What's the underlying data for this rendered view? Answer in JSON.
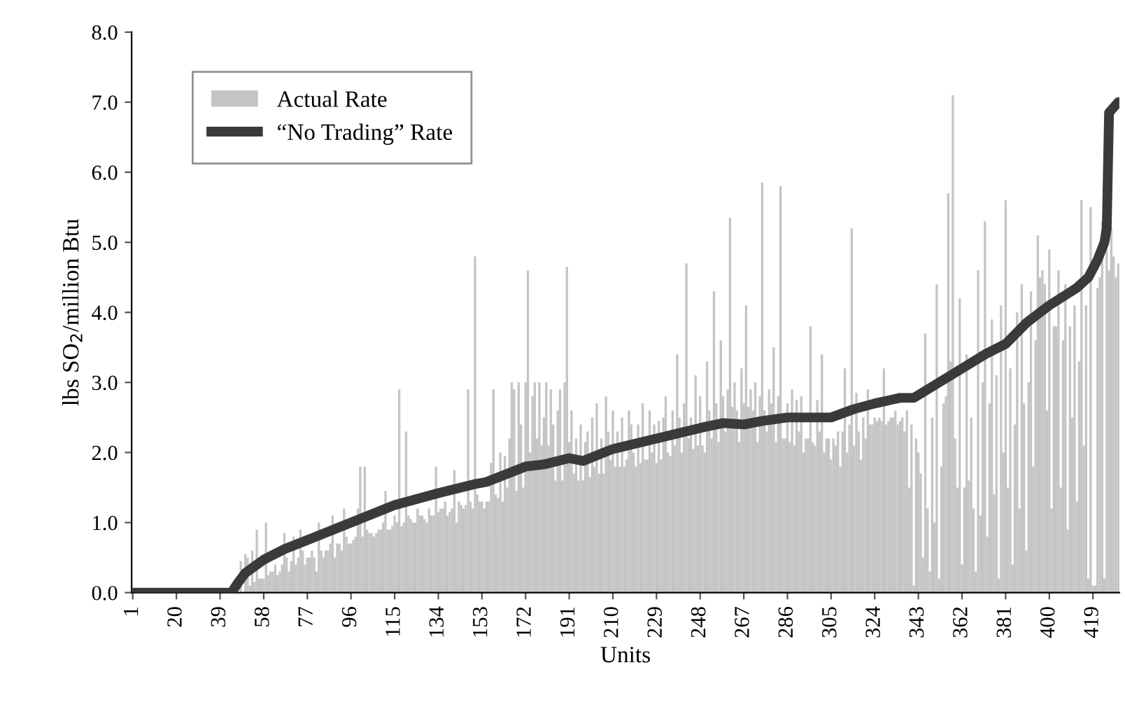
{
  "chart_data": {
    "type": "bar",
    "xlabel": "Units",
    "ylabel": "lbs SO$_{2}$/million Btu",
    "x": [
      1,
      2,
      3,
      4,
      5,
      6,
      7,
      8,
      9,
      10,
      11,
      12,
      13,
      14,
      15,
      16,
      17,
      18,
      19,
      20,
      21,
      22,
      23,
      24,
      25,
      26,
      27,
      28,
      29,
      30,
      31,
      32,
      33,
      34,
      35,
      36,
      37,
      38,
      39,
      40,
      41,
      42,
      43,
      44,
      45,
      46,
      47,
      48,
      49,
      50,
      51,
      52,
      53,
      54,
      55,
      56,
      57,
      58,
      59,
      60,
      61,
      62,
      63,
      64,
      65,
      66,
      67,
      68,
      69,
      70,
      71,
      72,
      73,
      74,
      75,
      76,
      77,
      78,
      79,
      80,
      81,
      82,
      83,
      84,
      85,
      86,
      87,
      88,
      89,
      90,
      91,
      92,
      93,
      94,
      95,
      96,
      97,
      98,
      99,
      100,
      101,
      102,
      103,
      104,
      105,
      106,
      107,
      108,
      109,
      110,
      111,
      112,
      113,
      114,
      115,
      116,
      117,
      118,
      119,
      120,
      121,
      122,
      123,
      124,
      125,
      126,
      127,
      128,
      129,
      130,
      131,
      132,
      133,
      134,
      135,
      136,
      137,
      138,
      139,
      140,
      141,
      142,
      143,
      144,
      145,
      146,
      147,
      148,
      149,
      150,
      151,
      152,
      153,
      154,
      155,
      156,
      157,
      158,
      159,
      160,
      161,
      162,
      163,
      164,
      165,
      166,
      167,
      168,
      169,
      170,
      171,
      172,
      173,
      174,
      175,
      176,
      177,
      178,
      179,
      180,
      181,
      182,
      183,
      184,
      185,
      186,
      187,
      188,
      189,
      190,
      191,
      192,
      193,
      194,
      195,
      196,
      197,
      198,
      199,
      200,
      201,
      202,
      203,
      204,
      205,
      206,
      207,
      208,
      209,
      210,
      211,
      212,
      213,
      214,
      215,
      216,
      217,
      218,
      219,
      220,
      221,
      222,
      223,
      224,
      225,
      226,
      227,
      228,
      229,
      230,
      231,
      232,
      233,
      234,
      235,
      236,
      237,
      238,
      239,
      240,
      241,
      242,
      243,
      244,
      245,
      246,
      247,
      248,
      249,
      250,
      251,
      252,
      253,
      254,
      255,
      256,
      257,
      258,
      259,
      260,
      261,
      262,
      263,
      264,
      265,
      266,
      267,
      268,
      269,
      270,
      271,
      272,
      273,
      274,
      275,
      276,
      277,
      278,
      279,
      280,
      281,
      282,
      283,
      284,
      285,
      286,
      287,
      288,
      289,
      290,
      291,
      292,
      293,
      294,
      295,
      296,
      297,
      298,
      299,
      300,
      301,
      302,
      303,
      304,
      305,
      306,
      307,
      308,
      309,
      310,
      311,
      312,
      313,
      314,
      315,
      316,
      317,
      318,
      319,
      320,
      321,
      322,
      323,
      324,
      325,
      326,
      327,
      328,
      329,
      330,
      331,
      332,
      333,
      334,
      335,
      336,
      337,
      338,
      339,
      340,
      341,
      342,
      343,
      344,
      345,
      346,
      347,
      348,
      349,
      350,
      351,
      352,
      353,
      354,
      355,
      356,
      357,
      358,
      359,
      360,
      361,
      362,
      363,
      364,
      365,
      366,
      367,
      368,
      369,
      370,
      371,
      372,
      373,
      374,
      375,
      376,
      377,
      378,
      379,
      380,
      381,
      382,
      383,
      384,
      385,
      386,
      387,
      388,
      389,
      390,
      391,
      392,
      393,
      394,
      395,
      396,
      397,
      398,
      399,
      400,
      401,
      402,
      403,
      404,
      405,
      406,
      407,
      408,
      409,
      410,
      411,
      412,
      413,
      414,
      415,
      416,
      417,
      418,
      419,
      420,
      421,
      422,
      423,
      424,
      425,
      426,
      427,
      428,
      429,
      430
    ],
    "series": [
      {
        "name": "Actual Rate",
        "color": "#c4c4c4",
        "values": [
          0,
          0,
          0,
          0,
          0,
          0,
          0,
          0,
          0,
          0,
          0,
          0,
          0,
          0,
          0,
          0,
          0,
          0,
          0,
          0,
          0,
          0,
          0,
          0,
          0,
          0,
          0,
          0,
          0,
          0,
          0,
          0,
          0,
          0,
          0,
          0,
          0,
          0,
          0,
          0,
          0,
          0,
          0,
          0,
          null,
          null,
          null,
          0.45,
          null,
          0.55,
          0.5,
          0.1,
          0.6,
          0.15,
          0.9,
          0.2,
          0.2,
          0.2,
          1.0,
          0.25,
          0.3,
          0.3,
          0.4,
          0.25,
          0.3,
          0.4,
          0.85,
          0.5,
          0.3,
          0.45,
          0.8,
          0.4,
          0.5,
          0.9,
          0.6,
          0.4,
          0.5,
          0.5,
          0.6,
          0.5,
          0.3,
          1.0,
          0.6,
          0.5,
          0.6,
          0.6,
          0.7,
          1.1,
          0.5,
          0.7,
          0.7,
          0.6,
          1.2,
          0.8,
          0.7,
          0.7,
          0.75,
          0.8,
          1.2,
          1.8,
          0.8,
          1.8,
          0.9,
          0.85,
          0.85,
          0.8,
          0.85,
          0.9,
          0.9,
          1.0,
          1.45,
          0.9,
          0.9,
          0.95,
          1.1,
          1.0,
          2.9,
          0.95,
          1.0,
          2.3,
          1.1,
          1.05,
          1.0,
          1.0,
          1.2,
          1.1,
          1.1,
          1.05,
          1.0,
          1.2,
          1.1,
          1.1,
          1.8,
          1.15,
          1.2,
          1.2,
          1.3,
          1.1,
          1.15,
          1.2,
          1.75,
          1.0,
          1.3,
          1.25,
          1.2,
          1.25,
          2.9,
          1.3,
          1.2,
          4.8,
          1.4,
          1.3,
          1.3,
          1.2,
          1.3,
          1.3,
          1.85,
          2.9,
          1.4,
          1.35,
          2.0,
          1.3,
          1.95,
          1.5,
          2.2,
          3.0,
          2.9,
          1.45,
          3.0,
          2.4,
          1.5,
          3.0,
          4.6,
          2.0,
          2.8,
          3.0,
          2.2,
          3.0,
          2.1,
          2.5,
          3.0,
          2.1,
          2.9,
          2.4,
          1.6,
          2.6,
          2.9,
          1.6,
          3.0,
          4.65,
          2.15,
          2.6,
          1.7,
          2.2,
          1.6,
          2.4,
          1.6,
          2.15,
          2.3,
          1.65,
          2.5,
          1.8,
          2.7,
          1.7,
          2.2,
          1.7,
          2.8,
          2.3,
          1.9,
          2.6,
          1.8,
          2.3,
          1.8,
          2.5,
          1.8,
          1.9,
          2.6,
          2.4,
          2.0,
          1.8,
          2.4,
          1.85,
          2.7,
          1.9,
          1.9,
          2.6,
          2.0,
          2.4,
          1.85,
          2.45,
          1.9,
          2.5,
          2.8,
          2.0,
          1.95,
          2.6,
          2.1,
          3.4,
          2.5,
          2.0,
          2.7,
          4.7,
          2.2,
          2.5,
          2.05,
          3.1,
          2.1,
          2.8,
          2.1,
          2.0,
          3.3,
          2.6,
          2.2,
          4.3,
          2.7,
          2.15,
          3.6,
          2.8,
          2.3,
          2.9,
          5.35,
          2.65,
          3.0,
          2.6,
          2.15,
          3.2,
          2.7,
          4.1,
          2.65,
          2.9,
          2.6,
          3.0,
          2.15,
          2.8,
          5.85,
          2.6,
          2.3,
          2.9,
          2.7,
          3.5,
          2.15,
          2.8,
          5.8,
          2.2,
          2.2,
          2.7,
          2.15,
          2.9,
          2.1,
          2.75,
          2.3,
          2.8,
          2.0,
          2.2,
          2.2,
          3.8,
          2.15,
          2.1,
          2.75,
          2.3,
          3.4,
          2.0,
          2.2,
          2.2,
          1.9,
          2.2,
          2.1,
          2.3,
          1.8,
          2.3,
          3.2,
          2.0,
          2.4,
          5.2,
          2.1,
          2.85,
          2.3,
          1.9,
          2.5,
          2.2,
          2.9,
          2.4,
          2.4,
          2.5,
          2.45,
          2.5,
          2.45,
          3.2,
          2.4,
          2.45,
          2.5,
          2.5,
          2.6,
          2.4,
          2.45,
          2.5,
          2.3,
          2.6,
          1.5,
          2.4,
          0.1,
          2.2,
          2.0,
          1.7,
          0.5,
          3.7,
          1.2,
          0.3,
          2.5,
          1.0,
          4.4,
          0.2,
          1.8,
          2.7,
          2.8,
          5.7,
          3.3,
          7.1,
          2.2,
          1.5,
          4.2,
          0.4,
          1.5,
          3.4,
          1.6,
          2.5,
          1.2,
          0.3,
          4.6,
          1.1,
          3.0,
          5.3,
          0.8,
          2.7,
          3.9,
          1.4,
          3.1,
          0.2,
          4.1,
          2.0,
          5.6,
          1.5,
          3.2,
          0.4,
          2.4,
          4.0,
          1.2,
          4.4,
          2.7,
          0.6,
          3.0,
          4.3,
          1.8,
          3.6,
          5.1,
          4.5,
          4.6,
          4.4,
          2.6,
          4.9,
          1.2,
          3.8,
          3.8,
          4.6,
          1.5,
          3.6,
          4.4,
          0.9,
          3.8,
          2.5,
          4.1,
          1.3,
          3.3,
          5.6,
          2.1,
          4.1,
          0.2,
          5.5,
          0.1,
          0.1,
          4.35,
          4.5,
          5.3,
          0.2,
          4.9,
          4.6,
          5.2,
          4.8,
          4.5,
          4.7
        ]
      },
      {
        "name": "“No Trading” Rate",
        "type": "line",
        "color": "#3a3a3a",
        "x": [
          1,
          44,
          47,
          50,
          55,
          58,
          67,
          77,
          96,
          115,
          134,
          150,
          155,
          172,
          180,
          191,
          197,
          210,
          229,
          248,
          258,
          267,
          275,
          286,
          305,
          315,
          324,
          335,
          341,
          352,
          362,
          372,
          381,
          390,
          400,
          412,
          417,
          421,
          424,
          425,
          426,
          430
        ],
        "values": [
          0,
          0,
          0.15,
          0.28,
          0.4,
          0.47,
          0.62,
          0.75,
          1.0,
          1.25,
          1.42,
          1.55,
          1.58,
          1.8,
          1.83,
          1.92,
          1.88,
          2.05,
          2.2,
          2.35,
          2.42,
          2.4,
          2.45,
          2.5,
          2.5,
          2.62,
          2.7,
          2.78,
          2.78,
          3.0,
          3.2,
          3.4,
          3.55,
          3.85,
          4.1,
          4.35,
          4.5,
          4.75,
          5.0,
          5.2,
          6.85,
          7.0
        ]
      }
    ],
    "xlim": [
      0.5,
      430.5
    ],
    "xticks": [
      1,
      20,
      39,
      58,
      77,
      96,
      115,
      134,
      153,
      172,
      191,
      210,
      229,
      248,
      267,
      286,
      305,
      324,
      343,
      362,
      381,
      400,
      419
    ],
    "ylim": [
      0,
      8
    ],
    "yticks": [
      {
        "value": 0,
        "label": "0.0"
      },
      {
        "value": 1,
        "label": "1.0"
      },
      {
        "value": 2,
        "label": "2.0"
      },
      {
        "value": 3,
        "label": "3.0"
      },
      {
        "value": 4,
        "label": "4.0"
      },
      {
        "value": 5,
        "label": "5.0"
      },
      {
        "value": 6,
        "label": "6.0"
      },
      {
        "value": 7,
        "label": "7.0"
      },
      {
        "value": 8,
        "label": "8.0"
      }
    ],
    "grid": false,
    "legend": "top left"
  }
}
